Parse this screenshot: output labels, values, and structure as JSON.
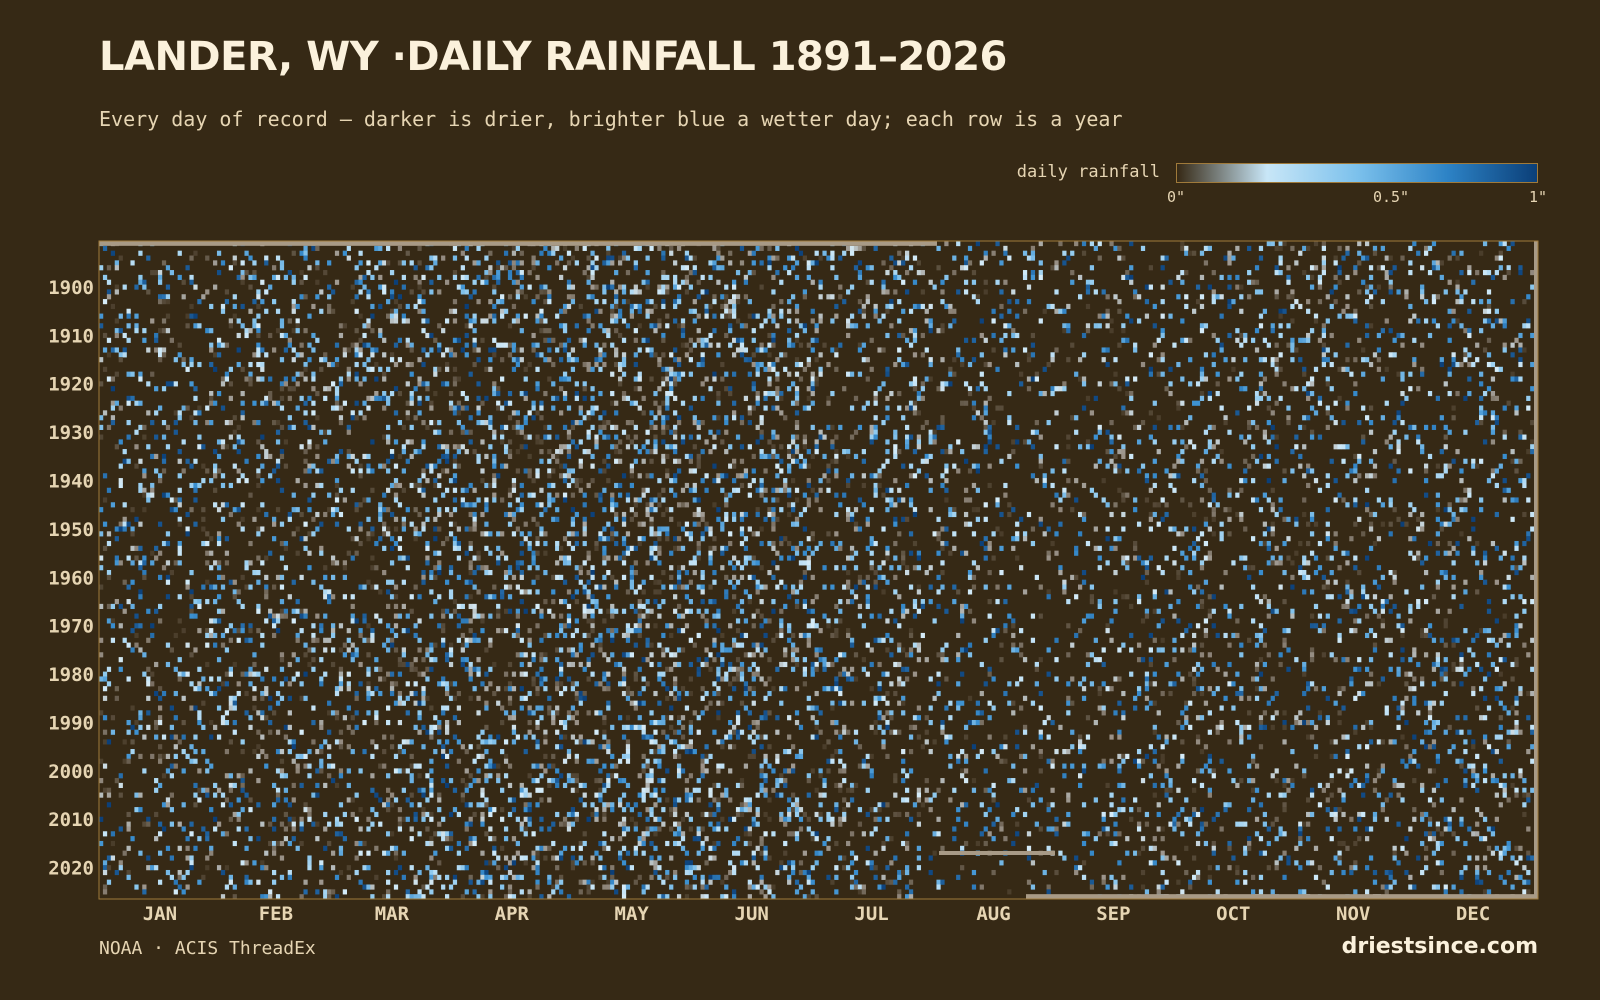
{
  "header": {
    "title": "LANDER, WY ·DAILY RAINFALL 1891–2026",
    "subtitle": "Every day of record — darker is drier, brighter blue a wetter day; each row is a year"
  },
  "legend": {
    "label": "daily rainfall",
    "ticks": [
      "0\"",
      "0.5\"",
      "1\""
    ],
    "min_inches": 0,
    "max_inches": 1,
    "colors": [
      "#362915",
      "#c8e6f7",
      "#7cc1ec",
      "#2d83c6",
      "#0b3f78"
    ]
  },
  "footer": {
    "source": "NOAA · ACIS ThreadEx",
    "brand": "driestsince.com"
  },
  "chart_data": {
    "type": "heatmap",
    "x_axis": "day of year",
    "y_axis": "year",
    "ylim": [
      1891,
      2026
    ],
    "xlim": [
      1,
      366
    ],
    "value_units": "inches",
    "value_range": [
      0,
      1
    ],
    "year_ticks": [
      "1900",
      "1910",
      "1920",
      "1930",
      "1940",
      "1950",
      "1960",
      "1970",
      "1980",
      "1990",
      "2000",
      "2010",
      "2020"
    ],
    "month_ticks": [
      "JAN",
      "FEB",
      "MAR",
      "APR",
      "MAY",
      "JUN",
      "JUL",
      "AUG",
      "SEP",
      "OCT",
      "NOV",
      "DEC"
    ],
    "missing_color": "#a89a86",
    "background_color": "#362915"
  }
}
